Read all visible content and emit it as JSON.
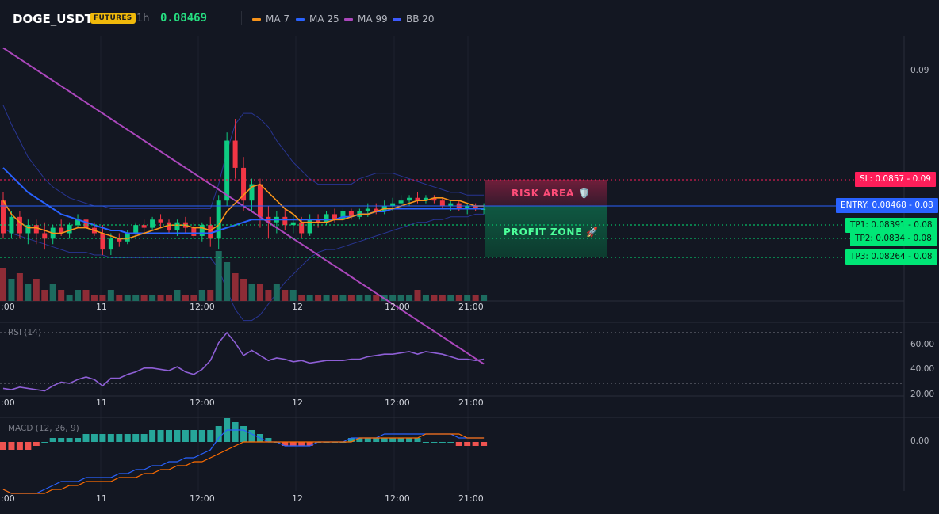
{
  "header": {
    "symbol": "DOGE_USDT",
    "market_badge": "FUTURES",
    "timeframe": "1h",
    "last_price": "0.08469",
    "indicators": [
      {
        "label": "MA 7",
        "color": "#f7931a"
      },
      {
        "label": "MA 25",
        "color": "#2962ff"
      },
      {
        "label": "MA 99",
        "color": "#ab47bc"
      },
      {
        "label": "BB 20",
        "color": "#3d5afe"
      }
    ]
  },
  "colors": {
    "background": "#131722",
    "up": "#0ecb81",
    "down": "#f23645",
    "sl": "#ff1e5a",
    "entry": "#2962ff",
    "tp": "#00e676"
  },
  "price_axis": {
    "label": "0.09"
  },
  "trade_levels": {
    "sl": {
      "label": "SL: 0.0857",
      "axis": "0.09",
      "price": 0.0857
    },
    "entry": {
      "label": "ENTRY: 0.08468",
      "axis": "0.08",
      "price": 0.08468
    },
    "tp1": {
      "label": "TP1: 0.08391",
      "axis": "0.08",
      "price": 0.08391
    },
    "tp2": {
      "label": "TP2: 0.0834",
      "axis": "0.08",
      "price": 0.0834
    },
    "tp3": {
      "label": "TP3: 0.08264",
      "axis": "0.08",
      "price": 0.08264
    }
  },
  "zones": {
    "risk": {
      "label": "RISK AREA 🛡️"
    },
    "profit": {
      "label": "PROFIT ZONE 🚀"
    }
  },
  "time_axis": [
    "2:00",
    "11",
    "12:00",
    "12",
    "12:00",
    "21:00"
  ],
  "rsi": {
    "title": "RSI (14)",
    "axis_labels": [
      "60.00",
      "40.00",
      "20.00"
    ],
    "upper_band": 70,
    "lower_band": 30
  },
  "macd": {
    "title": "MACD (12, 26, 9)",
    "axis_labels": [
      "0.00"
    ]
  },
  "chart_data": {
    "type": "candlestick",
    "title": "",
    "candles": [
      {
        "o": 0.085,
        "h": 0.0853,
        "l": 0.0836,
        "c": 0.0838
      },
      {
        "o": 0.0838,
        "h": 0.0846,
        "l": 0.0836,
        "c": 0.0844
      },
      {
        "o": 0.0844,
        "h": 0.0846,
        "l": 0.0836,
        "c": 0.0838
      },
      {
        "o": 0.0838,
        "h": 0.0843,
        "l": 0.0834,
        "c": 0.0841
      },
      {
        "o": 0.0841,
        "h": 0.0843,
        "l": 0.0834,
        "c": 0.0838
      },
      {
        "o": 0.0838,
        "h": 0.0842,
        "l": 0.0832,
        "c": 0.0836
      },
      {
        "o": 0.0836,
        "h": 0.0841,
        "l": 0.0834,
        "c": 0.084
      },
      {
        "o": 0.084,
        "h": 0.0843,
        "l": 0.0837,
        "c": 0.0838
      },
      {
        "o": 0.0838,
        "h": 0.0842,
        "l": 0.0836,
        "c": 0.0841
      },
      {
        "o": 0.0841,
        "h": 0.0845,
        "l": 0.084,
        "c": 0.0843
      },
      {
        "o": 0.0843,
        "h": 0.0845,
        "l": 0.0839,
        "c": 0.084
      },
      {
        "o": 0.084,
        "h": 0.0842,
        "l": 0.0837,
        "c": 0.0838
      },
      {
        "o": 0.0838,
        "h": 0.0841,
        "l": 0.083,
        "c": 0.0832
      },
      {
        "o": 0.0832,
        "h": 0.0838,
        "l": 0.083,
        "c": 0.0836
      },
      {
        "o": 0.0836,
        "h": 0.0838,
        "l": 0.0833,
        "c": 0.0835
      },
      {
        "o": 0.0835,
        "h": 0.0839,
        "l": 0.0834,
        "c": 0.0838
      },
      {
        "o": 0.0838,
        "h": 0.0842,
        "l": 0.0836,
        "c": 0.0841
      },
      {
        "o": 0.0841,
        "h": 0.0843,
        "l": 0.0838,
        "c": 0.084
      },
      {
        "o": 0.084,
        "h": 0.0844,
        "l": 0.0839,
        "c": 0.0843
      },
      {
        "o": 0.0843,
        "h": 0.0845,
        "l": 0.084,
        "c": 0.0842
      },
      {
        "o": 0.0842,
        "h": 0.0843,
        "l": 0.0838,
        "c": 0.0839
      },
      {
        "o": 0.0839,
        "h": 0.0843,
        "l": 0.0837,
        "c": 0.0842
      },
      {
        "o": 0.0842,
        "h": 0.0844,
        "l": 0.0838,
        "c": 0.084
      },
      {
        "o": 0.084,
        "h": 0.0842,
        "l": 0.0836,
        "c": 0.0837
      },
      {
        "o": 0.0837,
        "h": 0.0842,
        "l": 0.0835,
        "c": 0.0841
      },
      {
        "o": 0.0841,
        "h": 0.0844,
        "l": 0.0833,
        "c": 0.0836
      },
      {
        "o": 0.0836,
        "h": 0.0852,
        "l": 0.0832,
        "c": 0.085
      },
      {
        "o": 0.085,
        "h": 0.0875,
        "l": 0.0848,
        "c": 0.0872
      },
      {
        "o": 0.0872,
        "h": 0.088,
        "l": 0.0858,
        "c": 0.0862
      },
      {
        "o": 0.0862,
        "h": 0.0866,
        "l": 0.0846,
        "c": 0.085
      },
      {
        "o": 0.085,
        "h": 0.0858,
        "l": 0.0846,
        "c": 0.0856
      },
      {
        "o": 0.0856,
        "h": 0.0858,
        "l": 0.084,
        "c": 0.0844
      },
      {
        "o": 0.0844,
        "h": 0.0848,
        "l": 0.0836,
        "c": 0.0842
      },
      {
        "o": 0.0842,
        "h": 0.0846,
        "l": 0.0838,
        "c": 0.0844
      },
      {
        "o": 0.0844,
        "h": 0.0847,
        "l": 0.0839,
        "c": 0.0841
      },
      {
        "o": 0.0841,
        "h": 0.0845,
        "l": 0.0838,
        "c": 0.0842
      },
      {
        "o": 0.0842,
        "h": 0.0844,
        "l": 0.0836,
        "c": 0.0838
      },
      {
        "o": 0.0838,
        "h": 0.0845,
        "l": 0.0837,
        "c": 0.0843
      },
      {
        "o": 0.0843,
        "h": 0.0845,
        "l": 0.084,
        "c": 0.0842
      },
      {
        "o": 0.0842,
        "h": 0.0846,
        "l": 0.0841,
        "c": 0.0845
      },
      {
        "o": 0.0845,
        "h": 0.0847,
        "l": 0.0842,
        "c": 0.0843
      },
      {
        "o": 0.0843,
        "h": 0.0847,
        "l": 0.0842,
        "c": 0.0846
      },
      {
        "o": 0.0846,
        "h": 0.0847,
        "l": 0.0843,
        "c": 0.0844
      },
      {
        "o": 0.0844,
        "h": 0.0847,
        "l": 0.0843,
        "c": 0.0846
      },
      {
        "o": 0.0846,
        "h": 0.0849,
        "l": 0.0844,
        "c": 0.0847
      },
      {
        "o": 0.0847,
        "h": 0.0849,
        "l": 0.0845,
        "c": 0.0846
      },
      {
        "o": 0.0846,
        "h": 0.085,
        "l": 0.0845,
        "c": 0.0848
      },
      {
        "o": 0.0848,
        "h": 0.0851,
        "l": 0.0846,
        "c": 0.0849
      },
      {
        "o": 0.0849,
        "h": 0.0852,
        "l": 0.0847,
        "c": 0.085
      },
      {
        "o": 0.085,
        "h": 0.0852,
        "l": 0.0848,
        "c": 0.0851
      },
      {
        "o": 0.0851,
        "h": 0.0853,
        "l": 0.0849,
        "c": 0.085
      },
      {
        "o": 0.085,
        "h": 0.0852,
        "l": 0.0849,
        "c": 0.0851
      },
      {
        "o": 0.0851,
        "h": 0.0852,
        "l": 0.0849,
        "c": 0.085
      },
      {
        "o": 0.085,
        "h": 0.0851,
        "l": 0.0847,
        "c": 0.0848
      },
      {
        "o": 0.0848,
        "h": 0.085,
        "l": 0.0846,
        "c": 0.0849
      },
      {
        "o": 0.0849,
        "h": 0.085,
        "l": 0.0846,
        "c": 0.0847
      },
      {
        "o": 0.0847,
        "h": 0.0849,
        "l": 0.0845,
        "c": 0.0848
      },
      {
        "o": 0.0848,
        "h": 0.0849,
        "l": 0.0846,
        "c": 0.0847
      },
      {
        "o": 0.0847,
        "h": 0.0849,
        "l": 0.0845,
        "c": 0.0847
      }
    ],
    "volumes": [
      6,
      4,
      5,
      3,
      4,
      2,
      3,
      2,
      1,
      2,
      2,
      1,
      1,
      2,
      1,
      1,
      1,
      1,
      1,
      1,
      1,
      2,
      1,
      1,
      2,
      2,
      9,
      7,
      5,
      4,
      3,
      3,
      2,
      3,
      2,
      2,
      1,
      1,
      1,
      1,
      1,
      1,
      1,
      1,
      1,
      1,
      1,
      1,
      1,
      1,
      2,
      1,
      1,
      1,
      1,
      1,
      1,
      1,
      1
    ],
    "ma7": [
      0.085,
      0.0845,
      0.0842,
      0.084,
      0.084,
      0.0839,
      0.0838,
      0.0838,
      0.0839,
      0.084,
      0.084,
      0.0839,
      0.0838,
      0.0837,
      0.0836,
      0.0836,
      0.0837,
      0.0838,
      0.0839,
      0.084,
      0.0841,
      0.0841,
      0.0841,
      0.084,
      0.084,
      0.0839,
      0.0841,
      0.0846,
      0.0849,
      0.0852,
      0.0855,
      0.0856,
      0.0853,
      0.085,
      0.0847,
      0.0845,
      0.0842,
      0.0842,
      0.0842,
      0.0842,
      0.0843,
      0.0843,
      0.0844,
      0.0845,
      0.0845,
      0.0846,
      0.0847,
      0.0847,
      0.0848,
      0.0849,
      0.085,
      0.085,
      0.0851,
      0.0851,
      0.085,
      0.085,
      0.0849,
      0.0848,
      0.0848
    ],
    "ma25": [
      0.0862,
      0.0859,
      0.0856,
      0.0853,
      0.0851,
      0.0849,
      0.0847,
      0.0845,
      0.0844,
      0.0843,
      0.0842,
      0.0841,
      0.084,
      0.0839,
      0.0839,
      0.0838,
      0.0838,
      0.0838,
      0.0838,
      0.0838,
      0.0838,
      0.0838,
      0.0838,
      0.0838,
      0.0838,
      0.0838,
      0.0839,
      0.084,
      0.0841,
      0.0842,
      0.0843,
      0.0843,
      0.0843,
      0.0843,
      0.0843,
      0.0843,
      0.0843,
      0.0843,
      0.0843,
      0.0843,
      0.0843,
      0.0844,
      0.0844,
      0.0845,
      0.0845,
      0.0846,
      0.0846,
      0.0847,
      0.0847,
      0.0847,
      0.0847,
      0.0847,
      0.0847,
      0.0847,
      0.0847,
      0.0847,
      0.0847,
      0.0847,
      0.0847
    ],
    "ma99": [
      0.0906,
      0.0904,
      0.0902,
      0.09,
      0.0898,
      0.0896,
      0.0894,
      0.0892,
      0.089,
      0.0888,
      0.0886,
      0.0884,
      0.0882,
      0.088,
      0.0878,
      0.0876,
      0.0874,
      0.0872,
      0.087,
      0.0868,
      0.0866,
      0.0864,
      0.0862,
      0.086,
      0.0858,
      0.0856,
      0.0854,
      0.0852,
      0.085,
      0.0848,
      0.0846,
      0.0844,
      0.0842,
      0.084,
      0.0838,
      0.0836,
      0.0834,
      0.0832,
      0.083,
      0.0828,
      0.0826,
      0.0824,
      0.0822,
      0.082,
      0.0818,
      0.0816,
      0.0814,
      0.0812,
      0.081,
      0.0808,
      0.0806,
      0.0804,
      0.0802,
      0.08,
      0.0798,
      0.0796,
      0.0794,
      0.0792,
      0.079
    ],
    "bb_upper": [
      0.0885,
      0.0878,
      0.0872,
      0.0866,
      0.0862,
      0.0858,
      0.0855,
      0.0853,
      0.0851,
      0.085,
      0.0849,
      0.0848,
      0.0848,
      0.0847,
      0.0847,
      0.0847,
      0.0847,
      0.0847,
      0.0847,
      0.0847,
      0.0847,
      0.0847,
      0.0847,
      0.0847,
      0.0847,
      0.0847,
      0.0856,
      0.0868,
      0.0878,
      0.0882,
      0.0882,
      0.088,
      0.0877,
      0.0872,
      0.0868,
      0.0864,
      0.0861,
      0.0858,
      0.0856,
      0.0856,
      0.0856,
      0.0856,
      0.0856,
      0.0858,
      0.0859,
      0.086,
      0.086,
      0.086,
      0.0859,
      0.0858,
      0.0857,
      0.0856,
      0.0855,
      0.0854,
      0.0853,
      0.0853,
      0.0852,
      0.0852,
      0.0852
    ],
    "bb_lower": [
      0.084,
      0.0838,
      0.0837,
      0.0836,
      0.0835,
      0.0834,
      0.0833,
      0.0832,
      0.0831,
      0.0831,
      0.0831,
      0.083,
      0.083,
      0.0829,
      0.0829,
      0.0829,
      0.0829,
      0.0829,
      0.0829,
      0.0829,
      0.0829,
      0.0829,
      0.0829,
      0.0829,
      0.0829,
      0.0829,
      0.0825,
      0.0817,
      0.081,
      0.0806,
      0.0806,
      0.0808,
      0.0812,
      0.0816,
      0.082,
      0.0823,
      0.0826,
      0.0829,
      0.0831,
      0.0832,
      0.0832,
      0.0833,
      0.0834,
      0.0835,
      0.0836,
      0.0837,
      0.0838,
      0.0839,
      0.084,
      0.0841,
      0.0842,
      0.0842,
      0.0843,
      0.0843,
      0.0844,
      0.0844,
      0.0844,
      0.0845,
      0.0845
    ],
    "rsi": [
      26,
      25,
      27,
      26,
      25,
      24,
      28,
      31,
      30,
      33,
      35,
      33,
      28,
      34,
      34,
      37,
      39,
      42,
      42,
      41,
      40,
      43,
      39,
      37,
      41,
      48,
      62,
      70,
      62,
      52,
      56,
      52,
      48,
      50,
      49,
      47,
      48,
      46,
      47,
      48,
      48,
      48,
      49,
      49,
      51,
      52,
      53,
      53,
      54,
      55,
      53,
      55,
      54,
      53,
      51,
      49,
      49,
      48,
      49
    ],
    "macd_hist": [
      -2e-05,
      -2e-05,
      -2e-05,
      -2e-05,
      -1e-05,
      0.0,
      1e-05,
      1e-05,
      1e-05,
      1e-05,
      2e-05,
      2e-05,
      2e-05,
      2e-05,
      2e-05,
      2e-05,
      2e-05,
      2e-05,
      3e-05,
      3e-05,
      3e-05,
      3e-05,
      3e-05,
      3e-05,
      3e-05,
      3e-05,
      4e-05,
      6e-05,
      5e-05,
      4e-05,
      3e-05,
      2e-05,
      1e-05,
      0.0,
      -1e-05,
      -1e-05,
      -1e-05,
      -1e-05,
      0.0,
      0.0,
      0.0,
      0.0,
      1e-05,
      1e-05,
      1e-05,
      1e-05,
      1e-05,
      1e-05,
      1e-05,
      1e-05,
      1e-05,
      0.0,
      0.0,
      0.0,
      0.0,
      -1e-05,
      -1e-05,
      -1e-05,
      -1e-05
    ],
    "macd_line": [
      -0.00012,
      -0.00013,
      -0.00013,
      -0.00013,
      -0.00013,
      -0.00012,
      -0.00011,
      -0.0001,
      -0.0001,
      -0.0001,
      -9e-05,
      -9e-05,
      -9e-05,
      -9e-05,
      -8e-05,
      -8e-05,
      -7e-05,
      -7e-05,
      -6e-05,
      -6e-05,
      -5e-05,
      -5e-05,
      -4e-05,
      -4e-05,
      -3e-05,
      -2e-05,
      1e-05,
      3e-05,
      3e-05,
      3e-05,
      2e-05,
      1e-05,
      0.0,
      0.0,
      -1e-05,
      -1e-05,
      -1e-05,
      -1e-05,
      0.0,
      0.0,
      0.0,
      0.0,
      1e-05,
      1e-05,
      1e-05,
      1e-05,
      2e-05,
      2e-05,
      2e-05,
      2e-05,
      2e-05,
      2e-05,
      2e-05,
      2e-05,
      2e-05,
      1e-05,
      1e-05,
      1e-05,
      1e-05
    ],
    "signal_line": [
      -0.00012,
      -0.00013,
      -0.00013,
      -0.00013,
      -0.00013,
      -0.00013,
      -0.00012,
      -0.00012,
      -0.00011,
      -0.00011,
      -0.0001,
      -0.0001,
      -0.0001,
      -0.0001,
      -9e-05,
      -9e-05,
      -9e-05,
      -8e-05,
      -8e-05,
      -7e-05,
      -7e-05,
      -6e-05,
      -6e-05,
      -5e-05,
      -5e-05,
      -4e-05,
      -3e-05,
      -2e-05,
      -1e-05,
      0.0,
      0.0,
      0.0,
      0.0,
      0.0,
      0.0,
      0.0,
      0.0,
      0.0,
      0.0,
      0.0,
      0.0,
      0.0,
      0.0,
      1e-05,
      1e-05,
      1e-05,
      1e-05,
      1e-05,
      1e-05,
      1e-05,
      1e-05,
      2e-05,
      2e-05,
      2e-05,
      2e-05,
      2e-05,
      1e-05,
      1e-05,
      1e-05
    ]
  }
}
